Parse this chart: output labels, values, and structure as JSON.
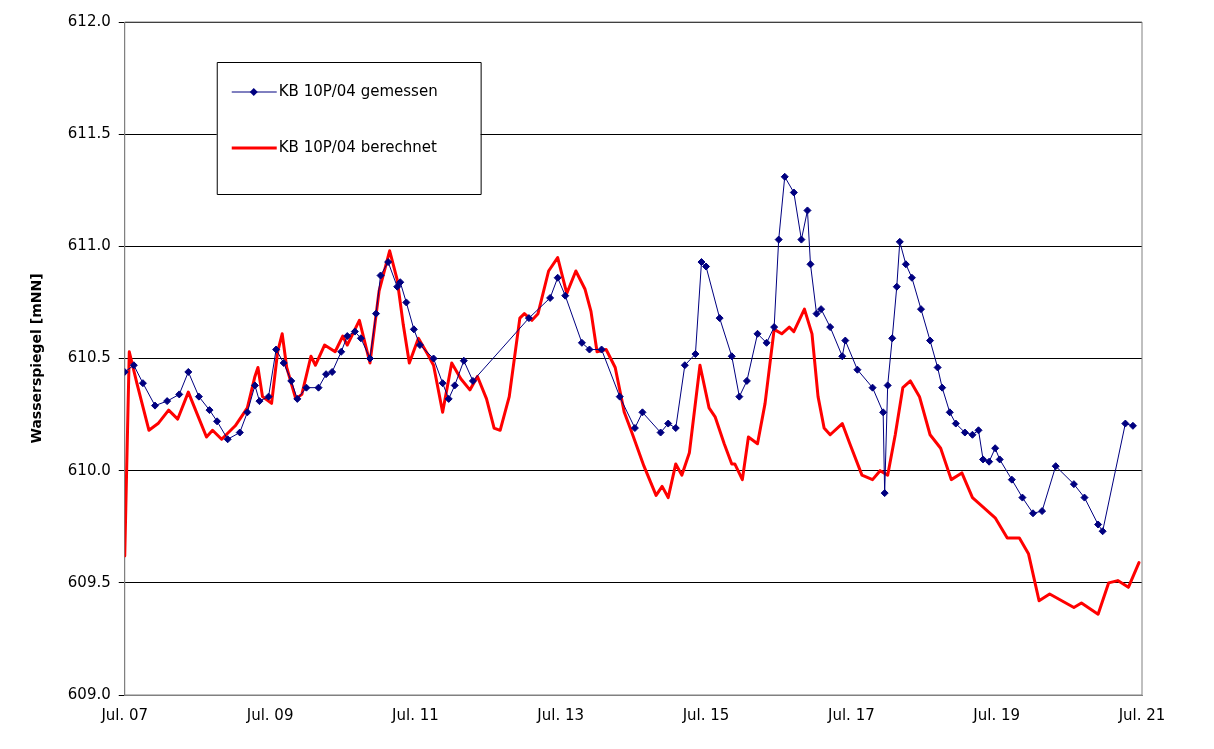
{
  "chart_data": {
    "type": "line",
    "ylabel": "Wasserspiegel [mNN]",
    "xlim": [
      "--07-07",
      "--07-21"
    ],
    "xticks": [
      {
        "value": "--07-07",
        "label": "Jul. 07"
      },
      {
        "value": "--07-09",
        "label": "Jul. 09"
      },
      {
        "value": "--07-11",
        "label": "Jul. 11"
      },
      {
        "value": "--07-13",
        "label": "Jul. 13"
      },
      {
        "value": "--07-15",
        "label": "Jul. 15"
      },
      {
        "value": "--07-17",
        "label": "Jul. 17"
      },
      {
        "value": "--07-19",
        "label": "Jul. 19"
      },
      {
        "value": "--07-21",
        "label": "Jul. 21"
      }
    ],
    "ylim": [
      609,
      612
    ],
    "yticks": [
      {
        "value": 609,
        "label": "609.0"
      },
      {
        "value": 609.5,
        "label": "609.5"
      },
      {
        "value": 610,
        "label": "610.0"
      },
      {
        "value": 610.5,
        "label": "610.5"
      },
      {
        "value": 611,
        "label": "611.0"
      },
      {
        "value": 611.5,
        "label": "611.5"
      },
      {
        "value": 612,
        "label": "612.0"
      }
    ],
    "grid": "y",
    "legend": "top left",
    "series": [
      {
        "name": "KB 10P/04 gemessen",
        "color": "#000080",
        "marker": "diamond",
        "x": [
          "--07-07T00:00",
          "--07-07T03:00",
          "--07-07T06:00",
          "--07-07T10:00",
          "--07-07T14:00",
          "--07-07T18:00",
          "--07-07T21:00",
          "--07-08T00:30",
          "--07-08T04:00",
          "--07-08T06:30",
          "--07-08T10:00",
          "--07-08T14:00",
          "--07-08T16:30",
          "--07-08T19:00",
          "--07-08T20:30",
          "--07-08T23:30",
          "--07-09T02:00",
          "--07-09T04:30",
          "--07-09T07:00",
          "--07-09T09:00",
          "--07-09T12:00",
          "--07-09T16:00",
          "--07-09T18:30",
          "--07-09T20:30",
          "--07-09T23:30",
          "--07-10T01:30",
          "--07-10T04:00",
          "--07-10T06:00",
          "--07-10T09:00",
          "--07-10T11:00",
          "--07-10T12:30",
          "--07-10T15:00",
          "--07-10T18:00",
          "--07-10T19:00",
          "--07-10T21:00",
          "--07-10T23:30",
          "--07-11T01:30",
          "--07-11T06:00",
          "--07-11T09:00",
          "--07-11T11:00",
          "--07-11T13:00",
          "--07-11T16:00",
          "--07-11T19:00",
          "--07-12T13:30",
          "--07-12T20:30",
          "--07-12T23:00",
          "--07-13T01:30",
          "--07-13T07:00",
          "--07-13T09:30",
          "--07-13T13:30",
          "--07-13T19:30",
          "--07-14T00:30",
          "--07-14T03:00",
          "--07-14T09:00",
          "--07-14T11:30",
          "--07-14T14:00",
          "--07-14T17:00",
          "--07-14T20:30",
          "--07-14T22:30",
          "--07-15T00:00",
          "--07-15T04:30",
          "--07-15T08:30",
          "--07-15T11:00",
          "--07-15T13:30",
          "--07-15T17:00",
          "--07-15T20:00",
          "--07-15T22:30",
          "--07-16T00:00",
          "--07-16T02:00",
          "--07-16T05:00",
          "--07-16T07:30",
          "--07-16T09:30",
          "--07-16T10:30",
          "--07-16T12:30",
          "--07-16T14:00",
          "--07-16T17:00",
          "--07-16T21:00",
          "--07-16T22:00",
          "--07-17T02:00",
          "--07-17T07:00",
          "--07-17T10:30",
          "--07-17T11:00",
          "--07-17T12:00",
          "--07-17T13:30",
          "--07-17T15:00",
          "--07-17T16:00",
          "--07-17T18:00",
          "--07-17T20:00",
          "--07-17T23:00",
          "--07-18T02:00",
          "--07-18T04:30",
          "--07-18T06:00",
          "--07-18T08:30",
          "--07-18T10:30",
          "--07-18T13:30",
          "--07-18T16:00",
          "--07-18T18:00",
          "--07-18T19:30",
          "--07-18T21:30",
          "--07-18T23:30",
          "--07-19T01:00",
          "--07-19T05:00",
          "--07-19T08:30",
          "--07-19T12:00",
          "--07-19T15:00",
          "--07-19T19:30",
          "--07-20T01:30",
          "--07-20T05:00",
          "--07-20T09:30",
          "--07-20T11:00",
          "--07-20T18:30",
          "--07-20T21:00"
        ],
        "values": [
          610.44,
          610.47,
          610.39,
          610.29,
          610.31,
          610.34,
          610.44,
          610.33,
          610.27,
          610.22,
          610.14,
          610.17,
          610.26,
          610.38,
          610.31,
          610.33,
          610.54,
          610.48,
          610.4,
          610.32,
          610.37,
          610.37,
          610.43,
          610.44,
          610.53,
          610.6,
          610.62,
          610.59,
          610.5,
          610.7,
          610.87,
          610.93,
          610.82,
          610.84,
          610.75,
          610.63,
          610.56,
          610.5,
          610.39,
          610.32,
          610.38,
          610.49,
          610.4,
          610.68,
          610.77,
          610.86,
          610.78,
          610.57,
          610.54,
          610.54,
          610.33,
          610.19,
          610.26,
          610.17,
          610.21,
          610.19,
          610.47,
          610.52,
          610.93,
          610.91,
          610.68,
          610.51,
          610.33,
          610.4,
          610.61,
          610.57,
          610.64,
          611.03,
          611.31,
          611.24,
          611.03,
          611.16,
          610.92,
          610.7,
          610.72,
          610.64,
          610.51,
          610.58,
          610.45,
          610.37,
          610.26,
          609.9,
          610.38,
          610.59,
          610.82,
          611.02,
          610.92,
          610.86,
          610.72,
          610.58,
          610.46,
          610.37,
          610.26,
          610.21,
          610.17,
          610.16,
          610.18,
          610.05,
          610.04,
          610.1,
          610.05,
          609.96,
          609.88,
          609.81,
          609.82,
          610.02,
          609.94,
          609.88,
          609.76,
          609.73,
          610.21,
          610.2
        ]
      },
      {
        "name": "KB 10P/04 berechnet",
        "color": "#ff0000",
        "marker": "none",
        "x": [
          "--07-07T00:00",
          "--07-07T01:30",
          "--07-07T04:00",
          "--07-07T08:00",
          "--07-07T11:00",
          "--07-07T14:30",
          "--07-07T17:30",
          "--07-07T21:00",
          "--07-08T00:00",
          "--07-08T03:00",
          "--07-08T05:00",
          "--07-08T08:00",
          "--07-08T12:30",
          "--07-08T16:30",
          "--07-08T19:00",
          "--07-08T20:00",
          "--07-08T21:30",
          "--07-09T00:30",
          "--07-09T02:30",
          "--07-09T04:00",
          "--07-09T05:30",
          "--07-09T08:30",
          "--07-09T10:30",
          "--07-09T13:30",
          "--07-09T15:00",
          "--07-09T18:00",
          "--07-09T21:30",
          "--07-10T00:00",
          "--07-10T01:30",
          "--07-10T05:30",
          "--07-10T09:00",
          "--07-10T12:00",
          "--07-10T15:30",
          "--07-10T18:00",
          "--07-10T20:00",
          "--07-10T22:00",
          "--07-11T01:00",
          "--07-11T04:00",
          "--07-11T06:00",
          "--07-11T09:00",
          "--07-11T12:00",
          "--07-11T15:00",
          "--07-11T18:00",
          "--07-11T20:30",
          "--07-11T23:30",
          "--07-12T02:00",
          "--07-12T04:00",
          "--07-12T07:00",
          "--07-12T10:30",
          "--07-12T12:00",
          "--07-12T14:30",
          "--07-12T16:30",
          "--07-12T20:00",
          "--07-12T23:00",
          "--07-13T02:00",
          "--07-13T05:00",
          "--07-13T08:00",
          "--07-13T10:00",
          "--07-13T12:00",
          "--07-13T15:00",
          "--07-13T18:00",
          "--07-13T21:00",
          "--07-13T23:30",
          "--07-14T03:30",
          "--07-14T07:30",
          "--07-14T09:30",
          "--07-14T11:30",
          "--07-14T14:00",
          "--07-14T16:00",
          "--07-14T18:30",
          "--07-14T22:00",
          "--07-15T01:00",
          "--07-15T03:00",
          "--07-15T06:00",
          "--07-15T08:30",
          "--07-15T09:30",
          "--07-15T12:00",
          "--07-15T14:00",
          "--07-15T17:00",
          "--07-15T19:30",
          "--07-15T22:30",
          "--07-16T01:00",
          "--07-16T03:30",
          "--07-16T05:00",
          "--07-16T08:30",
          "--07-16T11:00",
          "--07-16T13:00",
          "--07-16T15:00",
          "--07-16T17:00",
          "--07-16T21:00",
          "--07-16T23:30",
          "--07-17T03:30",
          "--07-17T07:00",
          "--07-17T09:30",
          "--07-17T12:00",
          "--07-17T14:30",
          "--07-17T17:00",
          "--07-17T19:30",
          "--07-17T22:30",
          "--07-18T02:00",
          "--07-18T05:30",
          "--07-18T09:00",
          "--07-18T12:30",
          "--07-18T16:00",
          "--07-18T21:00",
          "--07-18T23:30",
          "--07-19T03:30",
          "--07-19T07:30",
          "--07-19T10:30",
          "--07-19T14:00",
          "--07-19T17:30",
          "--07-19T21:30",
          "--07-20T01:30",
          "--07-20T04:00",
          "--07-20T09:30",
          "--07-20T13:00",
          "--07-20T16:00",
          "--07-20T19:30",
          "--07-20T23:00"
        ],
        "values": [
          609.62,
          610.53,
          610.39,
          610.18,
          610.21,
          610.27,
          610.23,
          610.35,
          610.25,
          610.15,
          610.18,
          610.14,
          610.2,
          610.28,
          610.42,
          610.46,
          610.33,
          610.3,
          610.53,
          610.61,
          610.46,
          610.32,
          610.34,
          610.51,
          610.47,
          610.56,
          610.53,
          610.6,
          610.56,
          610.67,
          610.48,
          610.8,
          610.98,
          610.85,
          610.65,
          610.48,
          610.59,
          610.52,
          610.47,
          610.26,
          610.48,
          610.41,
          610.36,
          610.42,
          610.32,
          610.19,
          610.18,
          610.33,
          610.68,
          610.7,
          610.67,
          610.7,
          610.89,
          610.95,
          610.79,
          610.89,
          610.81,
          610.71,
          610.53,
          610.54,
          610.46,
          610.26,
          610.17,
          610.02,
          609.89,
          609.93,
          609.88,
          610.03,
          609.98,
          610.08,
          610.47,
          610.28,
          610.24,
          610.12,
          610.03,
          610.03,
          609.96,
          610.15,
          610.12,
          610.3,
          610.63,
          610.61,
          610.64,
          610.62,
          610.72,
          610.61,
          610.33,
          610.19,
          610.16,
          610.21,
          610.12,
          609.98,
          609.96,
          610.0,
          609.98,
          610.16,
          610.37,
          610.4,
          610.33,
          610.16,
          610.1,
          609.96,
          609.99,
          609.88,
          609.82,
          609.79,
          609.7,
          609.7,
          609.63,
          609.42,
          609.45,
          609.42,
          609.39,
          609.41,
          609.36,
          609.5,
          609.51,
          609.48,
          609.59
        ]
      }
    ]
  }
}
